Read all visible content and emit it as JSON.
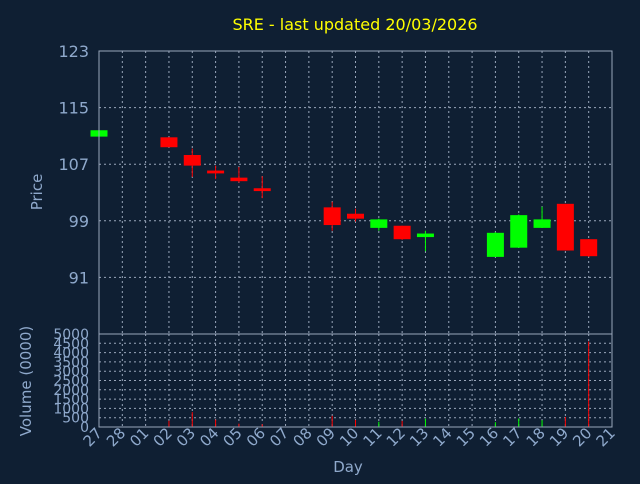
{
  "chart_data": {
    "type": "candlestick",
    "title": "SRE - last updated 20/03/2026",
    "xlabel": "Day",
    "ylabel_price": "Price",
    "ylabel_volume": "Volume (0000)",
    "price_ylim": [
      83,
      123
    ],
    "price_ticks": [
      91,
      99,
      107,
      115,
      123
    ],
    "volume_ylim": [
      0,
      5000
    ],
    "volume_ticks": [
      0,
      500,
      1000,
      1500,
      2000,
      2500,
      3000,
      3500,
      4000,
      4500,
      5000
    ],
    "x_tick_labels": [
      "27",
      "28",
      "01",
      "02",
      "03",
      "04",
      "05",
      "06",
      "07",
      "08",
      "09",
      "10",
      "11",
      "12",
      "13",
      "14",
      "15",
      "16",
      "17",
      "18",
      "19",
      "20",
      "21"
    ],
    "candles": [
      {
        "day": "27",
        "open": 110.9,
        "high": 112.0,
        "low": 110.6,
        "close": 111.8
      },
      {
        "day": "02",
        "open": 110.8,
        "high": 110.8,
        "low": 109.4,
        "close": 109.4
      },
      {
        "day": "03",
        "open": 108.3,
        "high": 109.2,
        "low": 105.2,
        "close": 106.8
      },
      {
        "day": "04",
        "open": 106.1,
        "high": 106.8,
        "low": 104.9,
        "close": 105.7
      },
      {
        "day": "05",
        "open": 105.1,
        "high": 106.6,
        "low": 104.4,
        "close": 104.6
      },
      {
        "day": "06",
        "open": 103.6,
        "high": 105.3,
        "low": 102.2,
        "close": 103.2
      },
      {
        "day": "09",
        "open": 100.9,
        "high": 101.7,
        "low": 97.6,
        "close": 98.4
      },
      {
        "day": "10",
        "open": 100.0,
        "high": 100.7,
        "low": 98.9,
        "close": 99.3
      },
      {
        "day": "11",
        "open": 98.0,
        "high": 99.3,
        "low": 97.6,
        "close": 99.2
      },
      {
        "day": "12",
        "open": 98.3,
        "high": 98.3,
        "low": 96.3,
        "close": 96.4
      },
      {
        "day": "13",
        "open": 96.7,
        "high": 97.6,
        "low": 94.7,
        "close": 97.2
      },
      {
        "day": "16",
        "open": 93.9,
        "high": 97.4,
        "low": 93.9,
        "close": 97.3
      },
      {
        "day": "17",
        "open": 95.2,
        "high": 99.9,
        "low": 95.2,
        "close": 99.8
      },
      {
        "day": "18",
        "open": 98.0,
        "high": 101.0,
        "low": 98.0,
        "close": 99.2
      },
      {
        "day": "19",
        "open": 101.4,
        "high": 101.4,
        "low": 94.8,
        "close": 94.8
      },
      {
        "day": "20",
        "open": 96.4,
        "high": 96.4,
        "low": 93.9,
        "close": 94.0
      }
    ],
    "volumes": [
      {
        "day": "27",
        "value": 110
      },
      {
        "day": "02",
        "value": 340
      },
      {
        "day": "03",
        "value": 800
      },
      {
        "day": "04",
        "value": 400
      },
      {
        "day": "05",
        "value": 180
      },
      {
        "day": "06",
        "value": 150
      },
      {
        "day": "09",
        "value": 600
      },
      {
        "day": "10",
        "value": 380
      },
      {
        "day": "11",
        "value": 280
      },
      {
        "day": "12",
        "value": 330
      },
      {
        "day": "13",
        "value": 450
      },
      {
        "day": "16",
        "value": 260
      },
      {
        "day": "17",
        "value": 460
      },
      {
        "day": "18",
        "value": 370
      },
      {
        "day": "19",
        "value": 540
      },
      {
        "day": "20",
        "value": 4600
      }
    ],
    "grid": true,
    "colors": {
      "background": "#0f1f33",
      "up": "#00ff00",
      "down": "#ff0000",
      "grid": "#9aa7bb",
      "axis_text": "#8fa9cc",
      "title": "#ffff00"
    }
  }
}
